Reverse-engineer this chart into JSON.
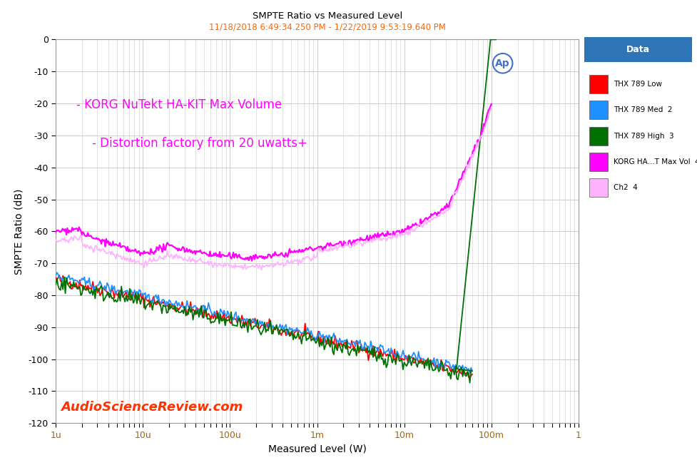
{
  "title": "SMPTE Ratio vs Measured Level",
  "subtitle": "11/18/2018 6:49:34.250 PM - 1/22/2019 9:53:19.640 PM",
  "xlabel": "Measured Level (W)",
  "ylabel": "SMPTE Ratio (dB)",
  "ylim": [
    -120,
    0
  ],
  "annotation_line1": "- KORG NuTekt HA-KIT Max Volume",
  "annotation_line2": "- Distortion factory from 20 uwatts+",
  "watermark": "AudioScienceReview.com",
  "legend_title": "Data",
  "legend_entries": [
    "THX 789 Low",
    "THX 789 Med  2",
    "THX 789 High  3",
    "KORG HA...T Max Vol  4",
    "Ch2  4"
  ],
  "legend_colors": [
    "#FF0000",
    "#1E90FF",
    "#007000",
    "#FF00FF",
    "#FFB3FF"
  ],
  "bg_color": "#FFFFFF",
  "grid_color": "#CCCCCC",
  "legend_header_color": "#2E75B6",
  "yticks": [
    0,
    -10,
    -20,
    -30,
    -40,
    -50,
    -60,
    -70,
    -80,
    -90,
    -100,
    -110,
    -120
  ],
  "xtick_locs": [
    1e-06,
    1e-05,
    0.0001,
    0.001,
    0.01,
    0.1,
    1.0
  ],
  "xtick_labels": [
    "1u",
    "10u",
    "100u",
    "1m",
    "10m",
    "100m",
    "1"
  ]
}
